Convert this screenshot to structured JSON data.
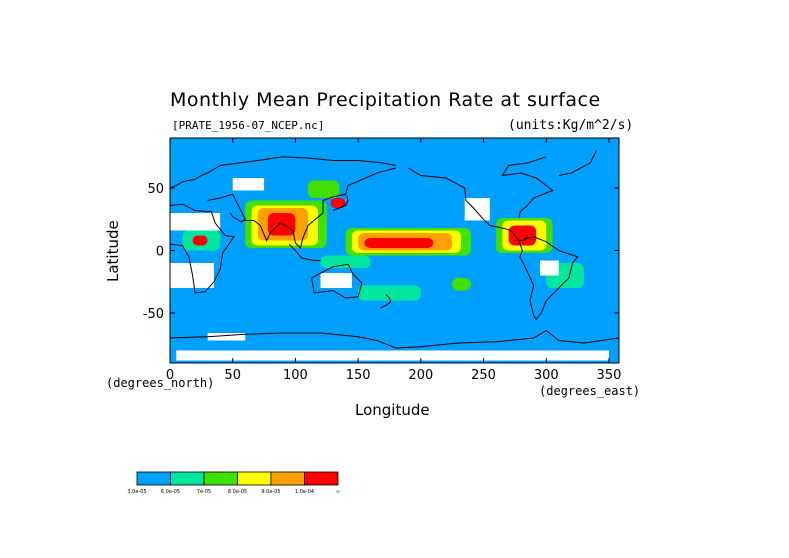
{
  "chart_data": {
    "type": "heatmap",
    "title": "Monthly Mean Precipitation Rate at surface",
    "subtitle": "[PRATE_1956-07_NCEP.nc]",
    "units": "(units:Kg/m^2/s)",
    "xlabel": "Longitude",
    "ylabel": "Latitude",
    "x_unit_label": "(degrees_east)",
    "y_unit_label": "(degrees_north)",
    "xlim": [
      0,
      358
    ],
    "ylim": [
      -90,
      90
    ],
    "x_ticks": [
      "0",
      "50",
      "100",
      "150",
      "200",
      "250",
      "300",
      "350"
    ],
    "x_tick_values": [
      0,
      50,
      100,
      150,
      200,
      250,
      300,
      350
    ],
    "y_ticks": [
      "50",
      "0",
      "-50"
    ],
    "y_tick_values": [
      50,
      0,
      -50
    ],
    "colorbar": {
      "colors": [
        "#00a0ff",
        "#00e8a0",
        "#40e000",
        "#ffff00",
        "#ffa000",
        "#ff0000"
      ],
      "labels": [
        "3.0e-05",
        "6.0e-05",
        "7e-05",
        "8.0e-05",
        "9.0e-05",
        "1.0e-04",
        "∞"
      ]
    },
    "background_color": "#00a0ff",
    "no_data_color": "#ffffff",
    "regions": [
      {
        "level": 6,
        "lon": [
          78,
          100
        ],
        "lat": [
          12,
          30
        ]
      },
      {
        "level": 6,
        "lon": [
          155,
          210
        ],
        "lat": [
          2,
          10
        ]
      },
      {
        "level": 6,
        "lon": [
          270,
          292
        ],
        "lat": [
          4,
          20
        ]
      },
      {
        "level": 6,
        "lon": [
          18,
          30
        ],
        "lat": [
          4,
          12
        ]
      },
      {
        "level": 6,
        "lon": [
          128,
          140
        ],
        "lat": [
          34,
          42
        ]
      },
      {
        "level": 5,
        "lon": [
          70,
          110
        ],
        "lat": [
          8,
          34
        ]
      },
      {
        "level": 5,
        "lon": [
          150,
          225
        ],
        "lat": [
          0,
          14
        ]
      },
      {
        "level": 4,
        "lon": [
          65,
          118
        ],
        "lat": [
          4,
          36
        ]
      },
      {
        "level": 4,
        "lon": [
          145,
          232
        ],
        "lat": [
          -2,
          16
        ]
      },
      {
        "level": 4,
        "lon": [
          265,
          300
        ],
        "lat": [
          0,
          24
        ]
      },
      {
        "level": 3,
        "lon": [
          60,
          125
        ],
        "lat": [
          2,
          40
        ]
      },
      {
        "level": 3,
        "lon": [
          140,
          240
        ],
        "lat": [
          -4,
          18
        ]
      },
      {
        "level": 3,
        "lon": [
          260,
          305
        ],
        "lat": [
          -2,
          26
        ]
      },
      {
        "level": 3,
        "lon": [
          225,
          240
        ],
        "lat": [
          -32,
          -22
        ]
      },
      {
        "level": 3,
        "lon": [
          110,
          135
        ],
        "lat": [
          42,
          56
        ]
      },
      {
        "level": 2,
        "lon": [
          10,
          40
        ],
        "lat": [
          0,
          16
        ]
      },
      {
        "level": 2,
        "lon": [
          120,
          160
        ],
        "lat": [
          -14,
          -4
        ]
      },
      {
        "level": 2,
        "lon": [
          150,
          200
        ],
        "lat": [
          -40,
          -28
        ]
      },
      {
        "level": 2,
        "lon": [
          300,
          330
        ],
        "lat": [
          -30,
          -10
        ]
      }
    ],
    "nodata_regions": [
      {
        "lon": [
          0,
          40
        ],
        "lat": [
          16,
          30
        ]
      },
      {
        "lon": [
          50,
          75
        ],
        "lat": [
          48,
          58
        ]
      },
      {
        "lon": [
          0,
          35
        ],
        "lat": [
          -30,
          -10
        ]
      },
      {
        "lon": [
          120,
          145
        ],
        "lat": [
          -30,
          -18
        ]
      },
      {
        "lon": [
          235,
          255
        ],
        "lat": [
          24,
          42
        ]
      },
      {
        "lon": [
          295,
          310
        ],
        "lat": [
          -20,
          -8
        ]
      },
      {
        "lon": [
          5,
          350
        ],
        "lat": [
          -88,
          -80
        ]
      },
      {
        "lon": [
          30,
          60
        ],
        "lat": [
          -72,
          -66
        ]
      }
    ]
  }
}
